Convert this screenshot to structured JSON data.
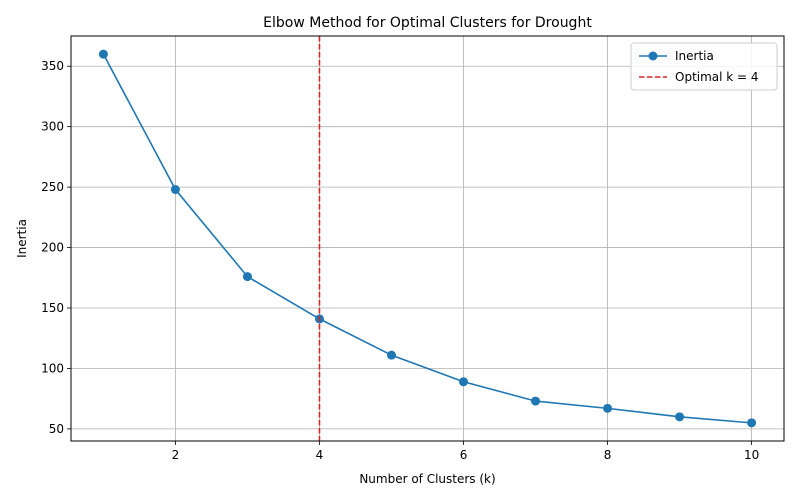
{
  "chart_data": {
    "type": "line",
    "title": "Elbow Method for Optimal Clusters for Drought",
    "xlabel": "Number of Clusters (k)",
    "ylabel": "Inertia",
    "xlim": [
      0.55,
      10.45
    ],
    "ylim": [
      40,
      375
    ],
    "xticks": [
      2,
      4,
      6,
      8,
      10
    ],
    "yticks": [
      50,
      100,
      150,
      200,
      250,
      300,
      350
    ],
    "grid": true,
    "legend_position": "top-right",
    "series": [
      {
        "name": "Inertia",
        "color": "#1f77b4",
        "marker": "circle",
        "x": [
          1,
          2,
          3,
          4,
          5,
          6,
          7,
          8,
          9,
          10
        ],
        "y": [
          360,
          248,
          176,
          141,
          111,
          89,
          73,
          67,
          60,
          55
        ]
      }
    ],
    "reference_line": {
      "name": "Optimal k = 4",
      "x": 4,
      "color": "#d62728",
      "style": "dashed"
    }
  }
}
